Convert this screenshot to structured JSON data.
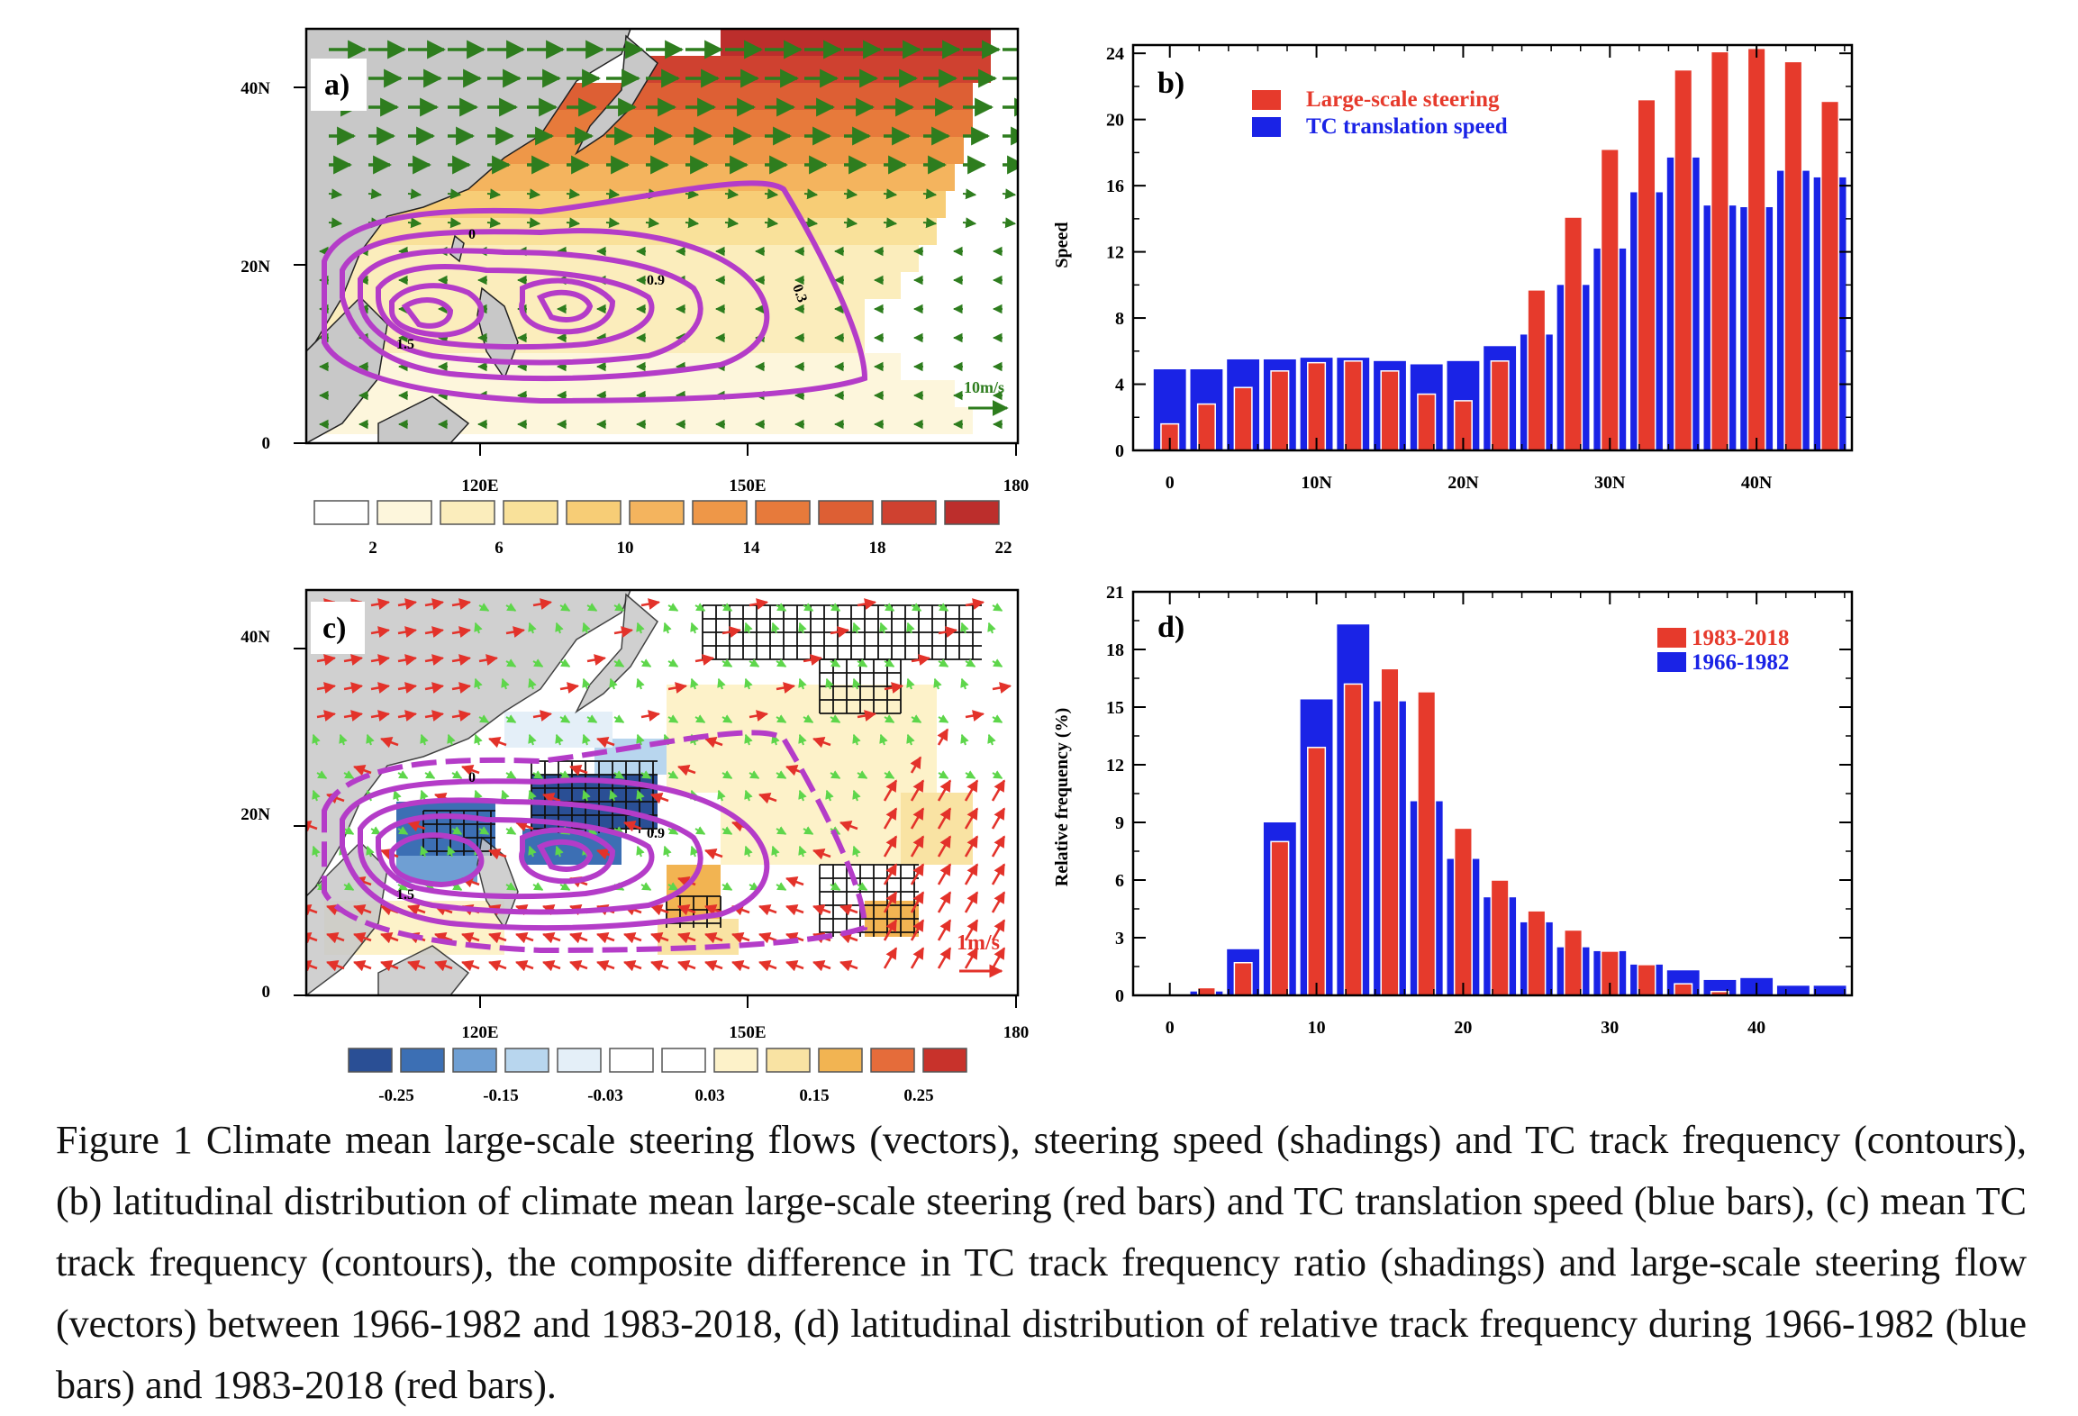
{
  "panels": {
    "a": {
      "label": "a)",
      "y_ticks": [
        "40N",
        "20N",
        "0"
      ],
      "x_ticks": [
        "120E",
        "150E",
        "180"
      ],
      "contour_labels": [
        "0.3",
        "0.9",
        "1.5",
        "0"
      ],
      "reference_vector": "10m/s",
      "colorbar": {
        "labels": [
          "2",
          "6",
          "10",
          "14",
          "18",
          "22"
        ],
        "colors": [
          "#ffffff",
          "#fdf6dc",
          "#fbedbc",
          "#f9e19a",
          "#f7cd76",
          "#f4b45e",
          "#ee9748",
          "#e77a3b",
          "#dd5f34",
          "#cf4130",
          "#bc2e2c"
        ]
      },
      "vector_color": "#2e7d1e",
      "contour_color": "#b43cc8"
    },
    "b": {
      "label": "b)",
      "y_label": "Speed",
      "legend": [
        {
          "name": "Large-scale steering",
          "color": "#e63a2c"
        },
        {
          "name": "TC translation speed",
          "color": "#1a23e6"
        }
      ]
    },
    "c": {
      "label": "c)",
      "y_ticks": [
        "40N",
        "20N",
        "0"
      ],
      "x_ticks": [
        "120E",
        "150E",
        "180"
      ],
      "contour_labels": [
        "0",
        "0.9",
        "1.5"
      ],
      "reference_vector": "1m/s",
      "colorbar": {
        "labels": [
          "-0.25",
          "-0.15",
          "-0.03",
          "0.03",
          "0.15",
          "0.25"
        ],
        "colors": [
          "#2a4f95",
          "#3c6fb4",
          "#6f9fd3",
          "#b8d6ee",
          "#e4eff8",
          "#ffffff",
          "#ffffff",
          "#fdf2c9",
          "#f9e3a3",
          "#f2b452",
          "#e56c3a",
          "#c8322b"
        ]
      }
    },
    "d": {
      "label": "d)",
      "y_label": "Relative frequency (%)",
      "legend": [
        {
          "name": "1983-2018",
          "color": "#e63a2c"
        },
        {
          "name": "1966-1982",
          "color": "#1a23e6"
        }
      ]
    }
  },
  "chart_data": [
    {
      "type": "bar",
      "panel": "b",
      "xlabel": "",
      "ylabel": "Speed",
      "x_ticks": [
        "0",
        "10N",
        "20N",
        "30N",
        "40N"
      ],
      "x_tick_values": [
        0,
        10,
        20,
        30,
        40
      ],
      "y_ticks": [
        0,
        4,
        8,
        12,
        16,
        20,
        24
      ],
      "xlim": [
        -2.5,
        46.5
      ],
      "ylim": [
        0,
        24.5
      ],
      "x": [
        0,
        2.5,
        5,
        7.5,
        10,
        12.5,
        15,
        17.5,
        20,
        22.5,
        25,
        27.5,
        30,
        32.5,
        35,
        37.5,
        40,
        42.5,
        45
      ],
      "series": [
        {
          "name": "TC translation speed",
          "values": [
            4.9,
            4.9,
            5.5,
            5.5,
            5.6,
            5.6,
            5.4,
            5.2,
            5.4,
            6.3,
            7.0,
            10.0,
            12.2,
            15.6,
            17.7,
            14.8,
            14.7,
            16.9,
            16.5
          ]
        },
        {
          "name": "Large-scale steering",
          "values": [
            1.6,
            2.8,
            3.8,
            4.8,
            5.3,
            5.4,
            4.8,
            3.4,
            3.0,
            5.4,
            9.7,
            14.1,
            18.2,
            21.2,
            23.0,
            24.1,
            24.3,
            23.5,
            21.1
          ]
        }
      ]
    },
    {
      "type": "bar",
      "panel": "d",
      "xlabel": "",
      "ylabel": "Relative frequency (%)",
      "x_ticks": [
        "0",
        "10",
        "20",
        "30",
        "40"
      ],
      "x_tick_values": [
        0,
        10,
        20,
        30,
        40
      ],
      "y_ticks": [
        0,
        3,
        6,
        9,
        12,
        15,
        18,
        21
      ],
      "xlim": [
        -2.5,
        46.5
      ],
      "ylim": [
        0,
        21
      ],
      "x": [
        0,
        2.5,
        5,
        7.5,
        10,
        12.5,
        15,
        17.5,
        20,
        22.5,
        25,
        27.5,
        30,
        32.5,
        35,
        37.5,
        40,
        42.5,
        45
      ],
      "series": [
        {
          "name": "1966-1982",
          "values": [
            0.0,
            0.2,
            2.4,
            9.0,
            15.4,
            19.3,
            15.3,
            10.1,
            7.1,
            5.1,
            3.8,
            2.5,
            2.3,
            1.6,
            1.3,
            0.8,
            0.9,
            0.5,
            0.5
          ]
        },
        {
          "name": "1983-2018",
          "values": [
            0.0,
            0.4,
            1.7,
            8.0,
            12.9,
            16.2,
            17.0,
            15.8,
            8.7,
            6.0,
            4.4,
            3.4,
            2.3,
            1.6,
            0.6,
            0.2,
            0.0,
            0.0,
            0.0
          ]
        }
      ]
    }
  ],
  "caption": "Figure 1 Climate mean large-scale steering flows (vectors), steering speed (shadings) and TC track frequency (contours), (b) latitudinal distribution of climate mean large-scale steering (red bars) and TC translation speed (blue bars), (c) mean TC track frequency (contours), the composite difference in TC track frequency ratio (shadings) and large-scale steering flow (vectors) between 1966-1982 and 1983-2018, (d) latitudinal distribution of relative track frequency during 1966-1982 (blue bars) and 1983-2018 (red bars)."
}
